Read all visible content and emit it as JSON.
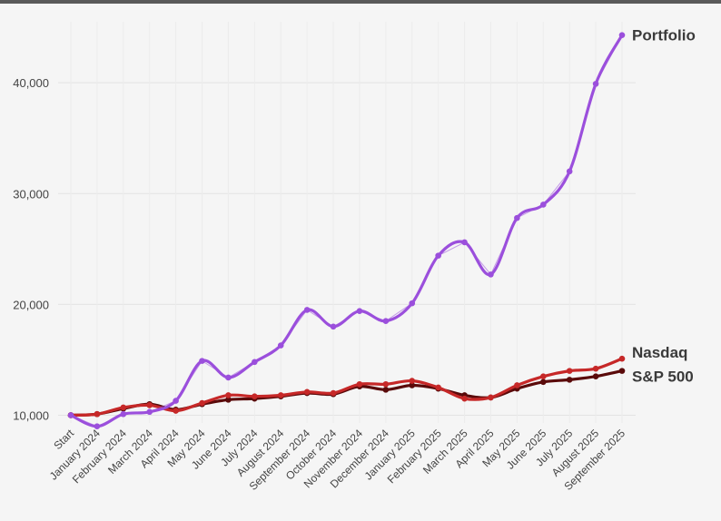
{
  "chart_data": {
    "type": "line",
    "title": "",
    "xlabel": "",
    "ylabel": "",
    "ylim": [
      9300,
      45500
    ],
    "yticks": [
      10000,
      20000,
      30000,
      40000
    ],
    "ytick_labels": [
      "10,000",
      "20,000",
      "30,000",
      "40,000"
    ],
    "grid": true,
    "categories": [
      "Start",
      "January 2024",
      "February 2024",
      "March 2024",
      "April 2024",
      "May 2024",
      "June 2024",
      "July 2024",
      "August 2024",
      "September 2024",
      "October 2024",
      "November 2024",
      "December 2024",
      "January 2025",
      "February 2025",
      "March 2025",
      "April 2025",
      "May 2025",
      "June 2025",
      "July 2025",
      "August 2025",
      "September 2025"
    ],
    "series": [
      {
        "name": "Portfolio",
        "color": "#9b4fdc",
        "values": [
          10000,
          9000,
          10100,
          10300,
          11300,
          14900,
          13400,
          14800,
          16300,
          19500,
          18000,
          19400,
          18500,
          20100,
          24400,
          25600,
          22700,
          27800,
          29000,
          32000,
          39900,
          44300
        ]
      },
      {
        "name": "Nasdaq",
        "color": "#c62828",
        "values": [
          10000,
          10100,
          10700,
          10900,
          10400,
          11100,
          11800,
          11700,
          11800,
          12100,
          12000,
          12800,
          12800,
          13100,
          12500,
          11500,
          11600,
          12700,
          13500,
          14000,
          14200,
          15100
        ]
      },
      {
        "name": "S&P 500",
        "color": "#5a0a0a",
        "values": [
          10000,
          10100,
          10600,
          11000,
          10500,
          11000,
          11400,
          11500,
          11700,
          12000,
          11900,
          12600,
          12300,
          12700,
          12400,
          11800,
          11600,
          12400,
          13000,
          13200,
          13500,
          14000
        ]
      }
    ]
  }
}
